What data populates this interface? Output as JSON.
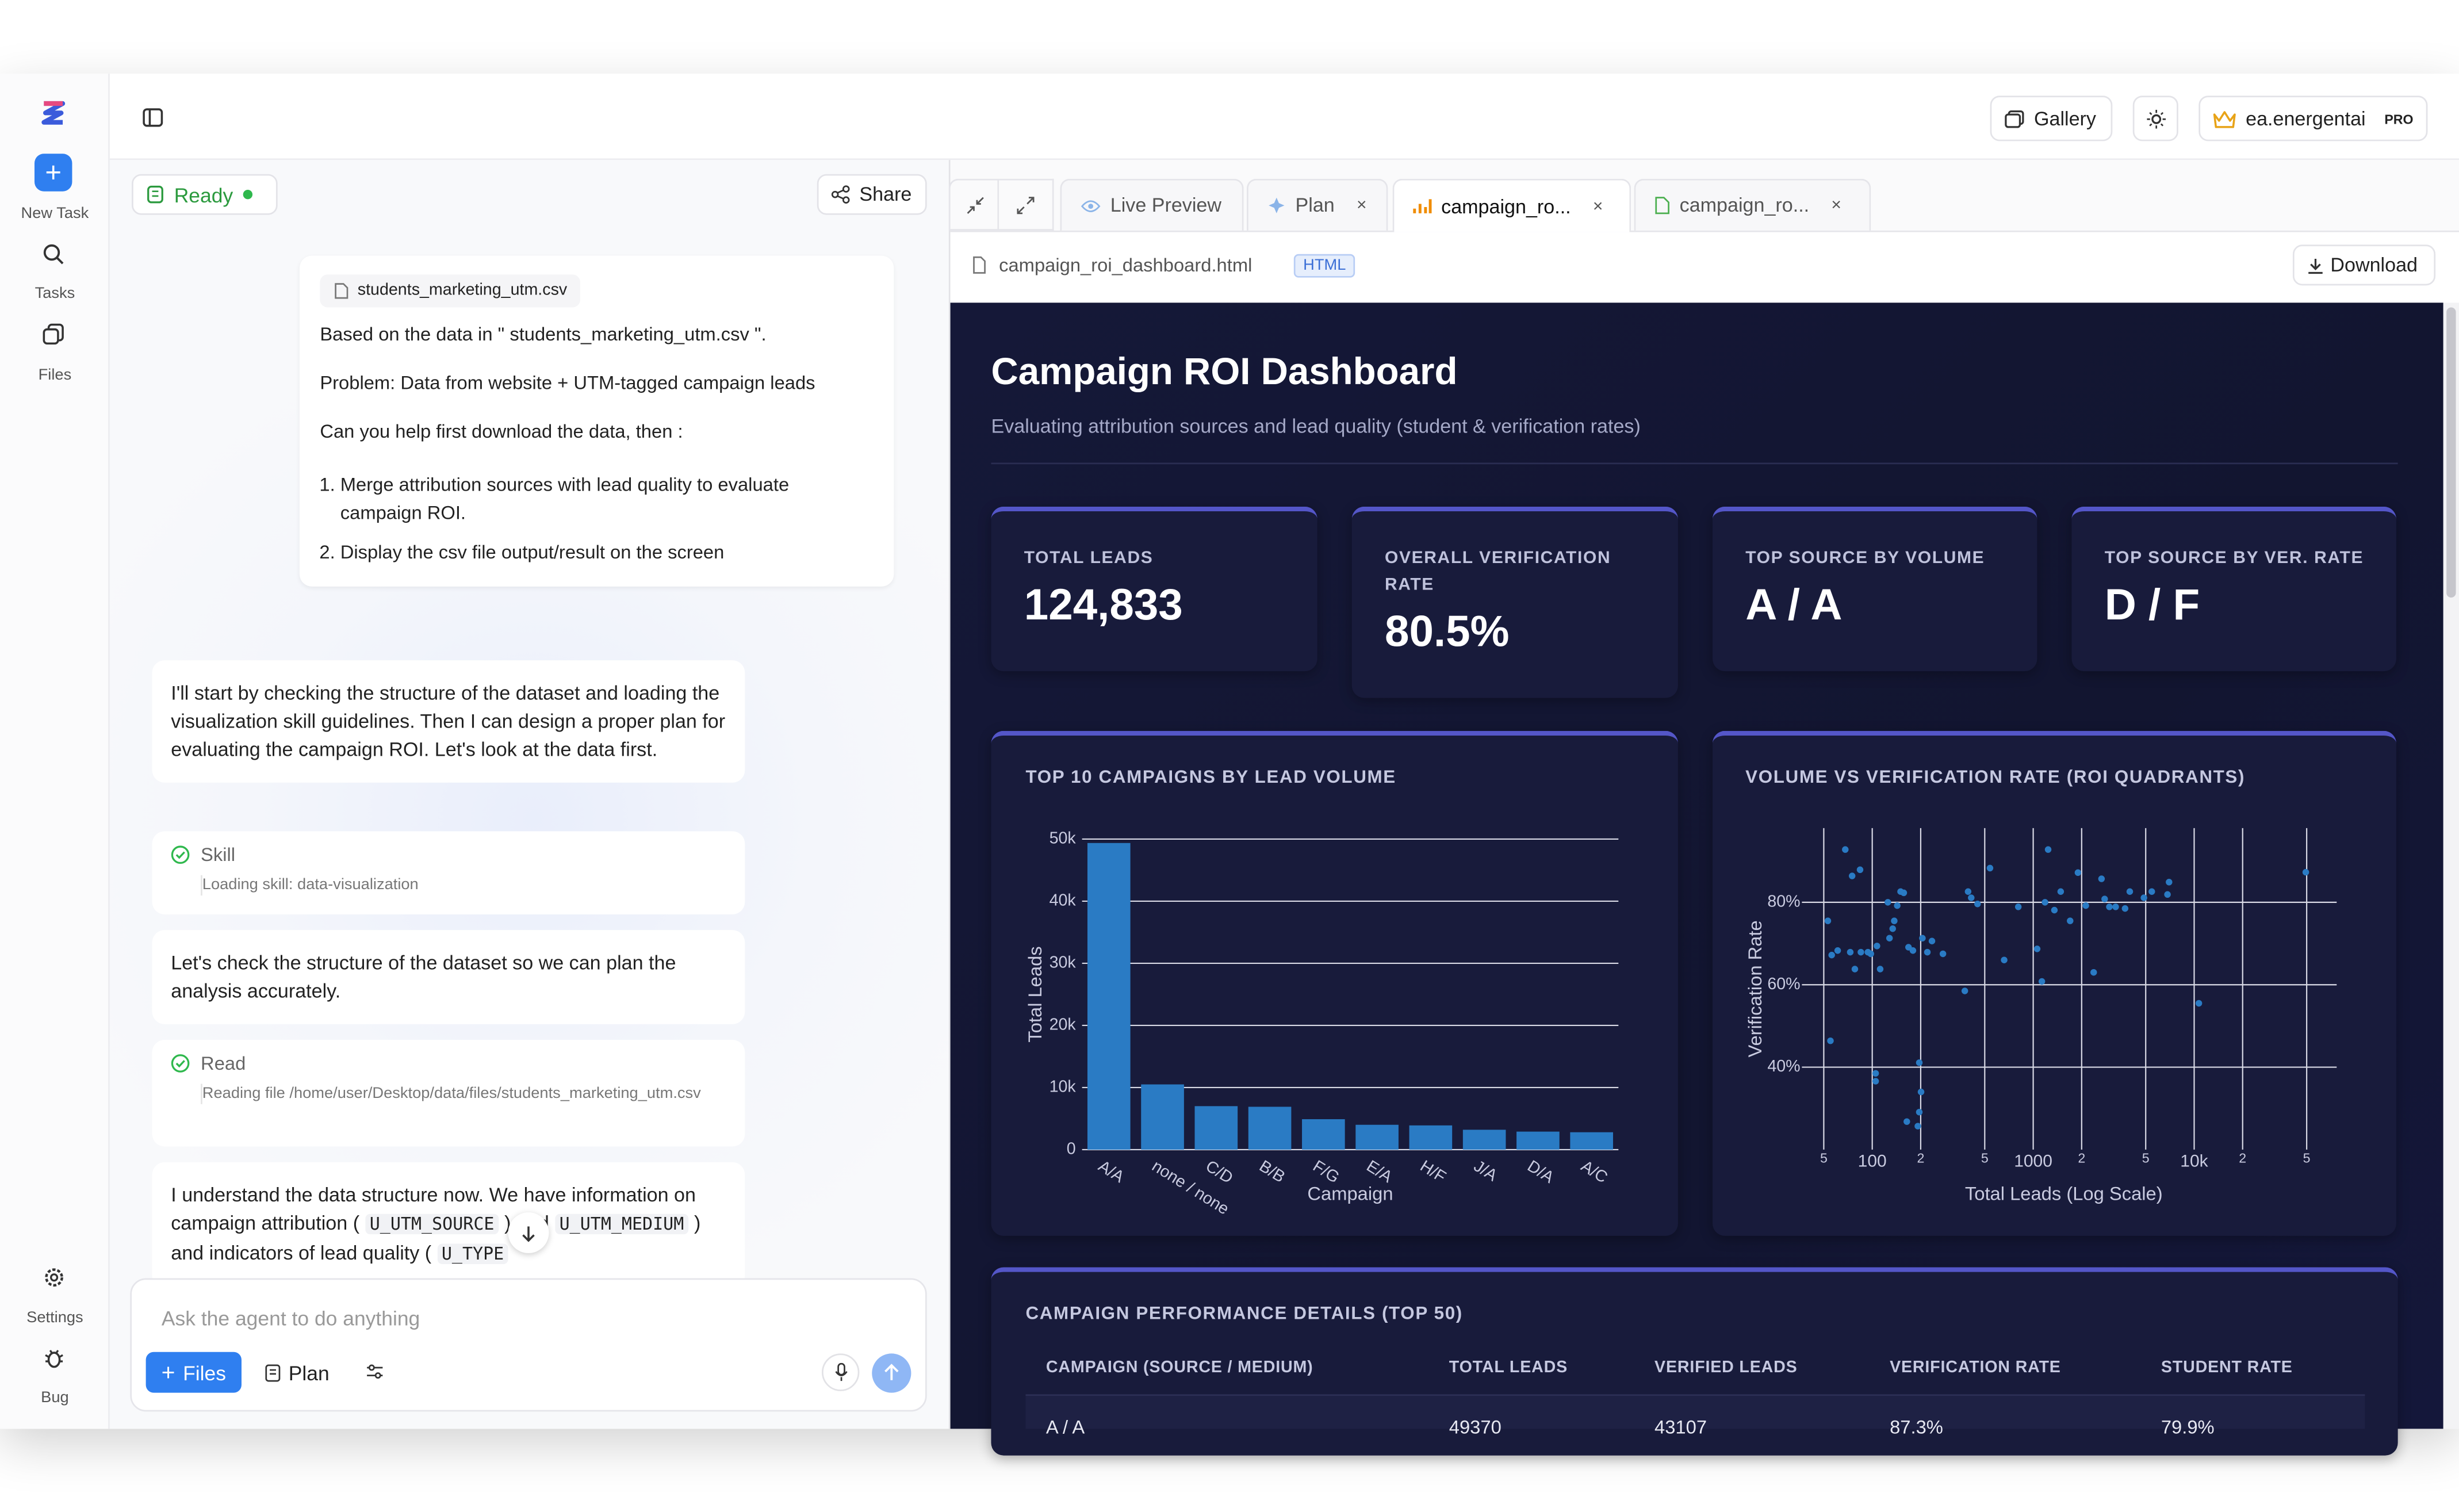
{
  "sidebar": {
    "items": [
      "New Task",
      "Tasks",
      "Files"
    ],
    "bottom": [
      "Settings",
      "Bug"
    ]
  },
  "topbar": {
    "gallery": "Gallery",
    "user": "ea.energentai",
    "badge": "PRO"
  },
  "chat": {
    "status": "Ready",
    "share": "Share",
    "user_message": {
      "attachment": "students_marketing_utm.csv",
      "lines": [
        "Based on the data in \" students_marketing_utm.csv \".",
        "Problem: Data from website + UTM-tagged campaign leads",
        "Can you help first download the data, then :"
      ],
      "list": [
        "Merge attribution sources with lead quality to evaluate campaign ROI.",
        "Display the csv file output/result on the screen"
      ]
    },
    "messages": [
      "I'll start by checking the structure of the dataset and loading the visualization skill guidelines. Then I can design a proper plan for evaluating the campaign ROI. Let's look at the data first.",
      "Let's check the structure of the dataset so we can plan the analysis accurately."
    ],
    "steps": [
      {
        "title": "Skill",
        "detail": "Loading skill: data-visualization"
      },
      {
        "title": "Read",
        "detail": "Reading file /home/user/Desktop/data/files/students_marketing_utm.csv"
      }
    ],
    "last_message": [
      "I understand the data structure now. We have information on campaign attribution (",
      "U_UTM_SOURCE",
      ") and",
      "U_UTM_MEDIUM",
      ") and indicators of lead quality (",
      "U_TYPE"
    ],
    "input": {
      "placeholder": "Ask the agent to do anything",
      "files": "Files",
      "plan": "Plan"
    }
  },
  "preview": {
    "tabs": [
      "Live Preview",
      "Plan",
      "campaign_ro...",
      "campaign_ro..."
    ],
    "file": "campaign_roi_dashboard.html",
    "file_type": "HTML",
    "download": "Download"
  },
  "dashboard": {
    "title": "Campaign ROI Dashboard",
    "subtitle": "Evaluating attribution sources and lead quality (student & verification rates)",
    "kpis": [
      {
        "label": "TOTAL LEADS",
        "value": "124,833"
      },
      {
        "label": "OVERALL VERIFICATION RATE",
        "value": "80.5%"
      },
      {
        "label": "TOP SOURCE BY VOLUME",
        "value": "A / A"
      },
      {
        "label": "TOP SOURCE BY VER. RATE",
        "value": "D / F"
      }
    ],
    "table": {
      "title": "CAMPAIGN PERFORMANCE DETAILS (TOP 50)",
      "headers": [
        "CAMPAIGN (SOURCE / MEDIUM)",
        "TOTAL LEADS",
        "VERIFIED LEADS",
        "VERIFICATION RATE",
        "STUDENT RATE"
      ],
      "rows": [
        [
          "A / A",
          49370,
          43107,
          "87.3%",
          "79.9%"
        ]
      ]
    }
  },
  "chart_data": [
    {
      "type": "bar",
      "title": "TOP 10 CAMPAIGNS BY LEAD VOLUME",
      "x_label": "Campaign",
      "y_label": "Total Leads",
      "categories": [
        "A/A",
        "none / none",
        "C/D",
        "B/B",
        "F/G",
        "E/A",
        "H/F",
        "J/A",
        "D/A",
        "A/C"
      ],
      "values": [
        49370,
        10500,
        7000,
        6900,
        4900,
        4000,
        3900,
        3200,
        2900,
        2800
      ],
      "color": "#2a7bc4",
      "ylim": [
        0,
        50000
      ],
      "yticks": [
        0,
        {
          "value": 10000,
          "label": "10k"
        },
        {
          "value": 20000,
          "label": "20k"
        },
        {
          "value": 30000,
          "label": "30k"
        },
        {
          "value": 40000,
          "label": "40k"
        },
        {
          "value": 50000,
          "label": "50k"
        }
      ],
      "grid": true
    },
    {
      "type": "scatter",
      "title": "VOLUME VS VERIFICATION RATE (ROI QUADRANTS)",
      "x_label": "Total Leads (Log Scale)",
      "y_label": "Verification Rate",
      "log_x": true,
      "color": "#2a7bc4",
      "x": [
        68,
        84,
        75,
        53,
        56,
        61,
        73,
        85,
        94,
        78,
        98,
        107,
        112,
        125,
        150,
        157,
        143,
        134,
        128,
        137,
        168,
        179,
        205,
        235,
        275,
        220,
        55,
        105,
        105,
        196,
        201,
        196,
        164,
        192,
        394,
        412,
        539,
        376,
        451,
        660,
        808,
        1058,
        1132,
        1238,
        1184,
        1354,
        1482,
        1696,
        1897,
        2122,
        2375,
        2657,
        2779,
        2973,
        3252,
        3721,
        3981,
        4873,
        5453,
        6982,
        6827,
        10693,
        49370
      ],
      "values": [
        92.8,
        87.9,
        86.4,
        75.5,
        67.2,
        68.3,
        67.9,
        67.9,
        67.9,
        63.8,
        67.5,
        69.4,
        63.8,
        80.0,
        82.6,
        82.3,
        79.2,
        73.6,
        71.3,
        75.5,
        69.1,
        68.3,
        71.3,
        70.6,
        67.5,
        67.9,
        46.4,
        38.5,
        36.6,
        41.1,
        34.0,
        29.1,
        26.8,
        25.7,
        82.6,
        81.1,
        88.3,
        58.5,
        79.6,
        66.0,
        78.9,
        68.7,
        60.8,
        92.8,
        80.0,
        78.1,
        82.6,
        75.5,
        87.2,
        79.2,
        63.0,
        85.7,
        80.8,
        78.9,
        78.9,
        78.5,
        82.6,
        81.1,
        82.6,
        84.9,
        81.9,
        55.5,
        87.3
      ],
      "xlim": [
        40,
        60000
      ],
      "xticks": [
        {
          "value": 50,
          "label": "5"
        },
        100,
        {
          "value": 200,
          "label": "2"
        },
        {
          "value": 500,
          "label": "5"
        },
        1000,
        {
          "value": 2000,
          "label": "2"
        },
        {
          "value": 5000,
          "label": "5"
        },
        {
          "value": 10000,
          "label": "10k"
        },
        {
          "value": 20000,
          "label": "2"
        },
        {
          "value": 50000,
          "label": "5"
        }
      ],
      "ylim": [
        20,
        98
      ],
      "yticks": [
        {
          "value": 40,
          "label": "40%"
        },
        {
          "value": 60,
          "label": "60%"
        },
        {
          "value": 80,
          "label": "80%"
        }
      ],
      "grid": true
    }
  ]
}
